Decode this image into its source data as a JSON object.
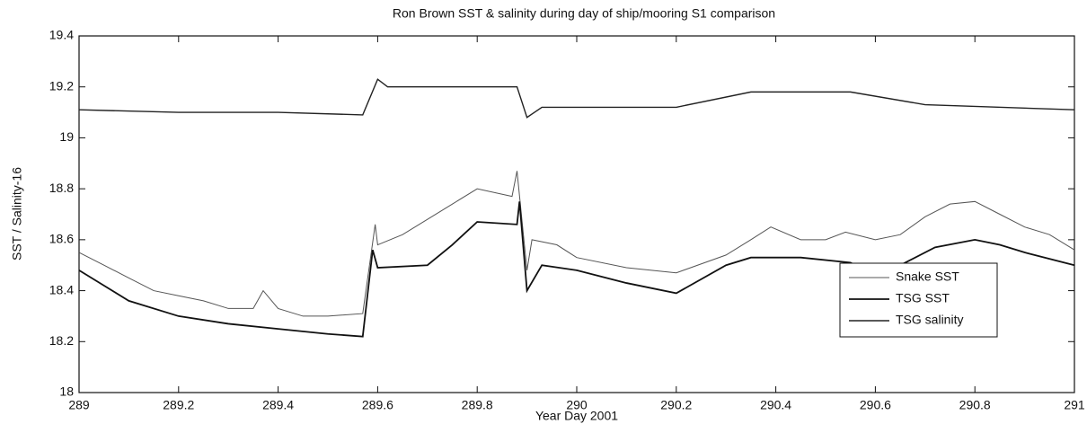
{
  "chart_data": {
    "type": "line",
    "title": "Ron Brown SST & salinity during day of ship/mooring S1 comparison",
    "xlabel": "Year Day 2001",
    "ylabel": "SST / Salinity-16",
    "xlim": [
      289,
      291
    ],
    "ylim": [
      18,
      19.4
    ],
    "xticks": [
      289,
      289.2,
      289.4,
      289.6,
      289.8,
      290,
      290.2,
      290.4,
      290.6,
      290.8,
      291
    ],
    "yticks": [
      18,
      18.2,
      18.4,
      18.6,
      18.8,
      19,
      19.2,
      19.4
    ],
    "legend": "lower right",
    "series": [
      {
        "name": "Snake SST",
        "color": "#555555",
        "line_width": 1,
        "x": [
          289,
          289.05,
          289.1,
          289.15,
          289.2,
          289.25,
          289.3,
          289.35,
          289.37,
          289.4,
          289.45,
          289.5,
          289.57,
          289.595,
          289.6,
          289.65,
          289.7,
          289.75,
          289.8,
          289.87,
          289.88,
          289.9,
          289.91,
          289.96,
          290,
          290.1,
          290.2,
          290.3,
          290.35,
          290.39,
          290.45,
          290.5,
          290.54,
          290.6,
          290.65,
          290.7,
          290.75,
          290.8,
          290.85,
          290.9,
          290.95,
          291
        ],
        "values": [
          18.55,
          18.5,
          18.45,
          18.4,
          18.38,
          18.36,
          18.33,
          18.33,
          18.4,
          18.33,
          18.3,
          18.3,
          18.31,
          18.66,
          18.58,
          18.62,
          18.68,
          18.74,
          18.8,
          18.77,
          18.87,
          18.48,
          18.6,
          18.58,
          18.53,
          18.49,
          18.47,
          18.54,
          18.6,
          18.65,
          18.6,
          18.6,
          18.63,
          18.6,
          18.62,
          18.69,
          18.74,
          18.75,
          18.7,
          18.65,
          18.62,
          18.56
        ]
      },
      {
        "name": "TSG SST",
        "color": "#111111",
        "line_width": 1.8,
        "x": [
          289,
          289.05,
          289.1,
          289.2,
          289.3,
          289.4,
          289.5,
          289.57,
          289.59,
          289.6,
          289.7,
          289.75,
          289.8,
          289.88,
          289.885,
          289.9,
          289.93,
          290,
          290.1,
          290.2,
          290.3,
          290.35,
          290.45,
          290.55,
          290.58,
          290.65,
          290.72,
          290.8,
          290.85,
          290.9,
          291
        ],
        "values": [
          18.48,
          18.42,
          18.36,
          18.3,
          18.27,
          18.25,
          18.23,
          18.22,
          18.56,
          18.49,
          18.5,
          18.58,
          18.67,
          18.66,
          18.75,
          18.4,
          18.5,
          18.48,
          18.43,
          18.39,
          18.5,
          18.53,
          18.53,
          18.51,
          18.48,
          18.5,
          18.57,
          18.6,
          18.58,
          18.55,
          18.5
        ]
      },
      {
        "name": "TSG salinity",
        "color": "#222222",
        "line_width": 1.4,
        "x": [
          289,
          289.2,
          289.4,
          289.57,
          289.6,
          289.62,
          289.88,
          289.9,
          289.93,
          290.2,
          290.35,
          290.55,
          290.7,
          291
        ],
        "values": [
          19.11,
          19.1,
          19.1,
          19.09,
          19.23,
          19.2,
          19.2,
          19.08,
          19.12,
          19.12,
          19.18,
          19.18,
          19.13,
          19.11
        ]
      }
    ]
  }
}
